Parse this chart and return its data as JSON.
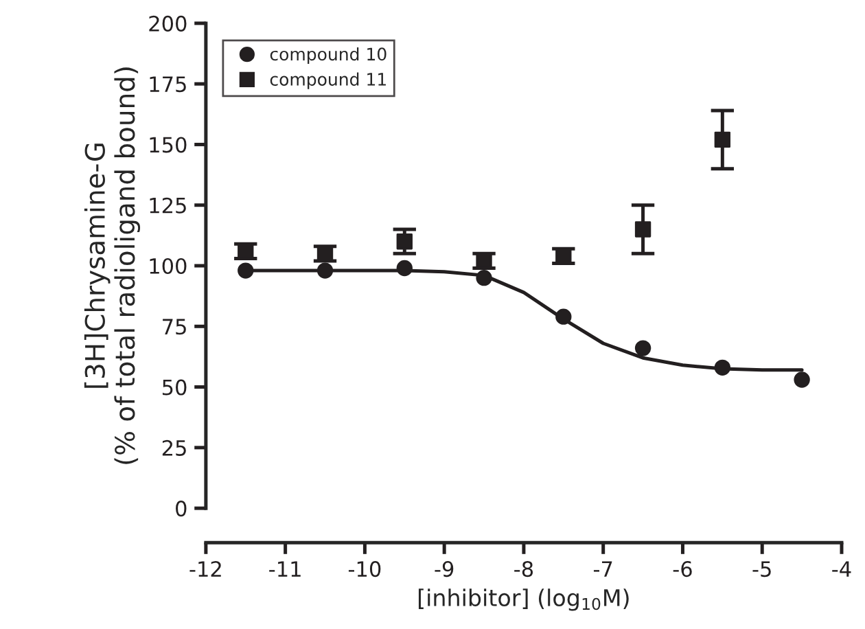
{
  "chart_data": {
    "type": "scatter",
    "xlabel": "[inhibitor] (log$_{10}$M)",
    "ylabel": "[3H]Chrysamine-G\n(% of total radioligand bound)",
    "xlim": [
      -12,
      -4
    ],
    "xticks": [
      -12,
      -11,
      -10,
      -9,
      -8,
      -7,
      -6,
      -5,
      -4
    ],
    "ylim": [
      0,
      200
    ],
    "yticks": [
      0,
      25,
      50,
      75,
      100,
      125,
      150,
      175,
      200
    ],
    "grid": false,
    "legend": "top left",
    "series": [
      {
        "name": "compound 10",
        "marker": "circle",
        "color": "#231f20",
        "x": [
          -11.5,
          -10.5,
          -9.5,
          -8.5,
          -7.5,
          -6.5,
          -5.5,
          -4.5
        ],
        "values": [
          98,
          98,
          99,
          95,
          79,
          66,
          58,
          53
        ]
      },
      {
        "name": "compound 11",
        "marker": "square",
        "color": "#231f20",
        "x": [
          -11.5,
          -10.5,
          -9.5,
          -8.5,
          -7.5,
          -6.5,
          -5.5
        ],
        "values": [
          106,
          105,
          110,
          102,
          104,
          115,
          152
        ],
        "errors": [
          3,
          3,
          5,
          3,
          3,
          10,
          12
        ]
      },
      {
        "type": "line",
        "marker": "none",
        "line_style": "solid",
        "color": "#231f20",
        "x": [
          -11.5,
          -10.5,
          -9.5,
          -9,
          -8.5,
          -8,
          -7.5,
          -7,
          -6.5,
          -6,
          -5.5,
          -5,
          -4.5
        ],
        "values": [
          98,
          98,
          98,
          97.5,
          96,
          89,
          78,
          68,
          62,
          59,
          57.5,
          57,
          57
        ]
      }
    ]
  }
}
